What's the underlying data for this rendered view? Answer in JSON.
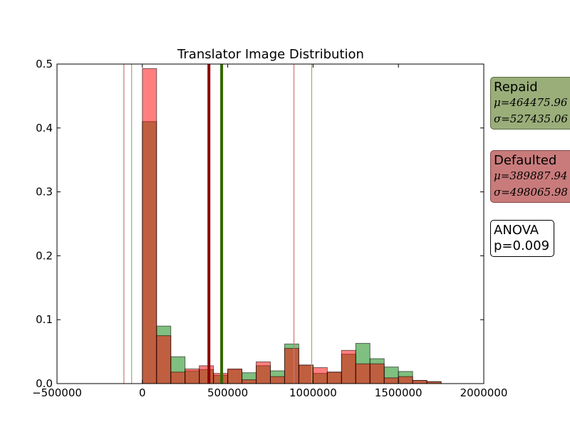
{
  "chart_data": {
    "type": "histogram",
    "title": "Translator Image Distribution",
    "xlabel": "",
    "ylabel": "",
    "xlim": [
      -500000,
      2000000
    ],
    "ylim": [
      0,
      0.5
    ],
    "x_ticks": [
      -500000,
      0,
      500000,
      1000000,
      1500000,
      2000000
    ],
    "x_tick_labels": [
      "−500000",
      "0",
      "500000",
      "1000000",
      "1500000",
      "2000000"
    ],
    "y_ticks": [
      0,
      0.1,
      0.2,
      0.3,
      0.4,
      0.5
    ],
    "y_tick_labels": [
      "0.0",
      "0.1",
      "0.2",
      "0.3",
      "0.4",
      "0.5"
    ],
    "bin_edges": [
      0,
      83333,
      166667,
      250000,
      333333,
      416667,
      500000,
      583333,
      666667,
      750000,
      833333,
      916667,
      1000000,
      1083333,
      1166667,
      1250000,
      1333333,
      1416667,
      1500000,
      1583333,
      1666667,
      1750000
    ],
    "series": [
      {
        "name": "Repaid",
        "color": "#008000",
        "values": [
          0.41,
          0.09,
          0.042,
          0.02,
          0.022,
          0.013,
          0.022,
          0.017,
          0.028,
          0.02,
          0.062,
          0.029,
          0.016,
          0.018,
          0.046,
          0.063,
          0.039,
          0.026,
          0.019,
          0.005,
          0.003
        ],
        "mean": 464475.9,
        "std": 527435.0,
        "mean_line_color": "#336600",
        "std_line_color": "#99aa77"
      },
      {
        "name": "Defaulted",
        "color": "#ff0000",
        "values": [
          0.493,
          0.075,
          0.018,
          0.023,
          0.028,
          0.016,
          0.023,
          0.006,
          0.034,
          0.011,
          0.055,
          0.029,
          0.025,
          0.018,
          0.052,
          0.031,
          0.031,
          0.009,
          0.011,
          0.005,
          0.003
        ],
        "mean": 389887.9,
        "std": 498065.9,
        "mean_line_color": "#8b0000",
        "std_line_color": "#cc7777"
      }
    ],
    "annotations": {
      "repaid": {
        "label": "Repaid",
        "mu": "μ=464475.96",
        "sigma": "σ=527435.06"
      },
      "defaulted": {
        "label": "Defaulted",
        "mu": "μ=389887.94",
        "sigma": "σ=498065.98"
      },
      "anova": {
        "label": "ANOVA",
        "p": "p=0.009"
      }
    },
    "grid": false
  }
}
